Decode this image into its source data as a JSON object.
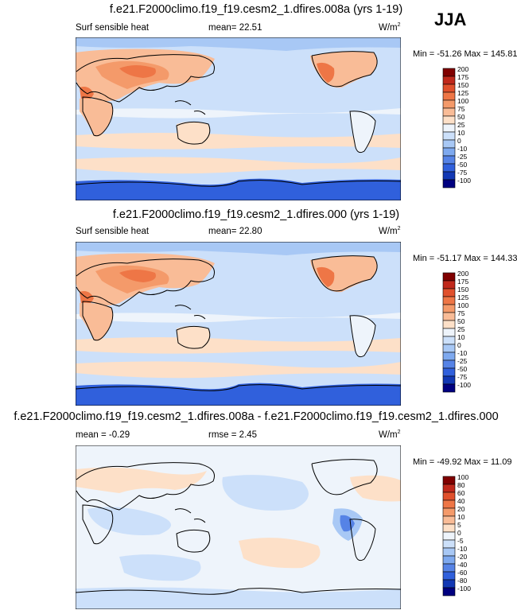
{
  "season": "JJA",
  "panels": [
    {
      "title": "f.e21.F2000climo.f19_f19.cesm2_1.dfires.008a (yrs 1-19)",
      "left_label": "Surf sensible heat",
      "stat_label": "mean=",
      "stat_value": "22.51",
      "unit_base": "W/m",
      "unit_exp": "2",
      "min_max": "Min = -51.26 Max = 145.81"
    },
    {
      "title": "f.e21.F2000climo.f19_f19.cesm2_1.dfires.000 (yrs 1-19)",
      "left_label": "Surf sensible heat",
      "stat_label": "mean=",
      "stat_value": "22.80",
      "unit_base": "W/m",
      "unit_exp": "2",
      "min_max": "Min = -51.17 Max = 144.33"
    },
    {
      "title": "f.e21.F2000climo.f19_f19.cesm2_1.dfires.008a - f.e21.F2000climo.f19_f19.cesm2_1.dfires.000",
      "left_label": "mean =  -0.29",
      "stat_label": "rmse =",
      "stat_value": "2.45",
      "unit_base": "W/m",
      "unit_exp": "2",
      "min_max": "Min = -49.92 Max =  11.09"
    }
  ],
  "chart_data": [
    {
      "type": "heatmap",
      "title": "f.e21.F2000climo.f19_f19.cesm2_1.dfires.008a (yrs 1-19)",
      "variable": "Surf sensible heat",
      "mean": 22.51,
      "min": -51.26,
      "max": 145.81,
      "units": "W/m2",
      "colorbar_levels": [
        "200",
        "175",
        "150",
        "125",
        "100",
        "75",
        "50",
        "25",
        "10",
        "0",
        "-10",
        "-25",
        "-50",
        "-75",
        "-100"
      ],
      "colorbar_colors": [
        "#800000",
        "#c0281b",
        "#e0502c",
        "#ee7646",
        "#f49a6a",
        "#f9bc97",
        "#fde0c8",
        "#eef4fb",
        "#cce0fa",
        "#a8c8f5",
        "#7ea9ef",
        "#5683e6",
        "#3060dc",
        "#1238b4",
        "#000080"
      ]
    },
    {
      "type": "heatmap",
      "title": "f.e21.F2000climo.f19_f19.cesm2_1.dfires.000 (yrs 1-19)",
      "variable": "Surf sensible heat",
      "mean": 22.8,
      "min": -51.17,
      "max": 144.33,
      "units": "W/m2",
      "colorbar_levels": [
        "200",
        "175",
        "150",
        "125",
        "100",
        "75",
        "50",
        "25",
        "10",
        "0",
        "-10",
        "-25",
        "-50",
        "-75",
        "-100"
      ],
      "colorbar_colors": [
        "#800000",
        "#c0281b",
        "#e0502c",
        "#ee7646",
        "#f49a6a",
        "#f9bc97",
        "#fde0c8",
        "#eef4fb",
        "#cce0fa",
        "#a8c8f5",
        "#7ea9ef",
        "#5683e6",
        "#3060dc",
        "#1238b4",
        "#000080"
      ]
    },
    {
      "type": "heatmap",
      "title": "f.e21.F2000climo.f19_f19.cesm2_1.dfires.008a - f.e21.F2000climo.f19_f19.cesm2_1.dfires.000",
      "mean": -0.29,
      "rmse": 2.45,
      "min": -49.92,
      "max": 11.09,
      "units": "W/m2",
      "colorbar_levels": [
        "100",
        "80",
        "60",
        "40",
        "20",
        "10",
        "5",
        "0",
        "-5",
        "-10",
        "-20",
        "-40",
        "-60",
        "-80",
        "-100"
      ],
      "colorbar_colors": [
        "#800000",
        "#c0281b",
        "#e0502c",
        "#ee7646",
        "#f49a6a",
        "#f9bc97",
        "#fde0c8",
        "#eef4fb",
        "#cce0fa",
        "#a8c8f5",
        "#7ea9ef",
        "#5683e6",
        "#3060dc",
        "#1238b4",
        "#000080"
      ]
    }
  ]
}
